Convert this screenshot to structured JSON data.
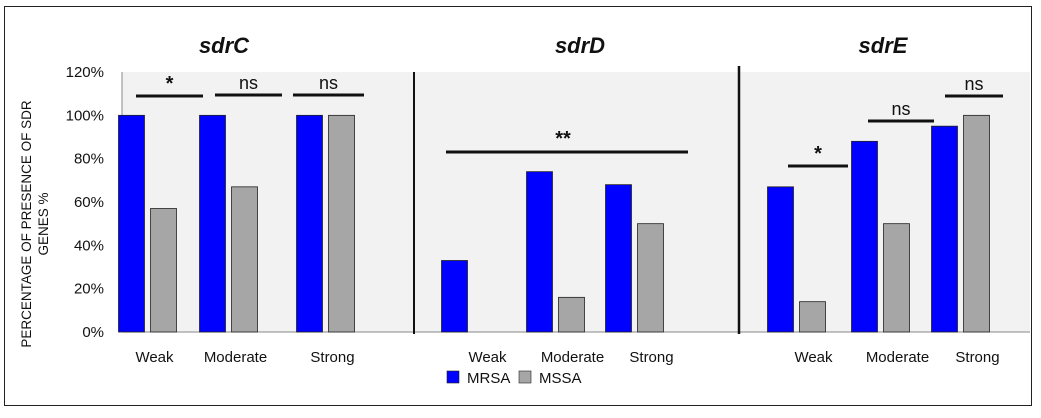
{
  "colors": {
    "MRSA": "#0000ff",
    "MSSA": "#a6a6a6",
    "panel_bg": "#f2f2f2"
  },
  "chart_data": {
    "type": "bar",
    "ylabel_lines": [
      "PERCENTAGE OF PRESENCE OF SDR",
      "GENES %"
    ],
    "ylim": [
      0,
      120
    ],
    "yticks": [
      "0%",
      "20%",
      "40%",
      "60%",
      "80%",
      "100%",
      "120%"
    ],
    "legend_position": "bottom-center",
    "series_names": [
      "MRSA",
      "MSSA"
    ],
    "panels": [
      {
        "title": "sdrC",
        "categories": [
          "Weak",
          "Moderate",
          "Strong"
        ],
        "series": [
          {
            "name": "MRSA",
            "values": [
              100,
              100,
              100
            ]
          },
          {
            "name": "MSSA",
            "values": [
              57,
              67,
              100
            ]
          }
        ],
        "significance": [
          "*",
          "ns",
          "ns"
        ]
      },
      {
        "title": "sdrD",
        "categories": [
          "Weak",
          "Moderate",
          "Strong"
        ],
        "series": [
          {
            "name": "MRSA",
            "values": [
              33,
              74,
              68
            ]
          },
          {
            "name": "MSSA",
            "values": [
              0,
              16,
              50
            ]
          }
        ],
        "significance_all": "**"
      },
      {
        "title": "sdrE",
        "categories": [
          "Weak",
          "Moderate",
          "Strong"
        ],
        "series": [
          {
            "name": "MRSA",
            "values": [
              67,
              88,
              95
            ]
          },
          {
            "name": "MSSA",
            "values": [
              14,
              50,
              100
            ]
          }
        ],
        "significance": [
          "*",
          "ns",
          "ns"
        ]
      }
    ]
  }
}
